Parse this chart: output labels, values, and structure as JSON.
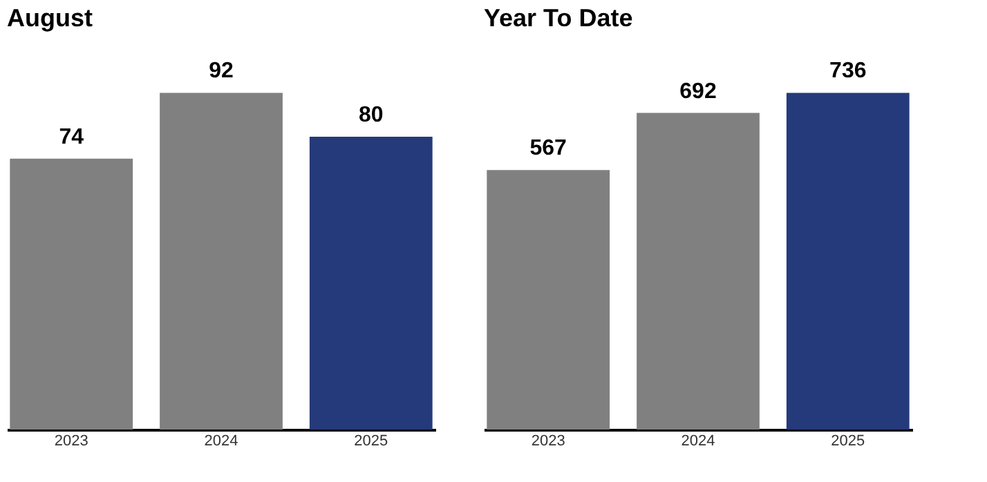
{
  "chart_data": [
    {
      "type": "bar",
      "title": "August",
      "categories": [
        "2023",
        "2024",
        "2025"
      ],
      "values": [
        74,
        92,
        80
      ],
      "colors": [
        "#808080",
        "#808080",
        "#253a7a"
      ],
      "data_labels": true,
      "tick_labels": "x",
      "grid": false
    },
    {
      "type": "bar",
      "title": "Year To Date",
      "categories": [
        "2023",
        "2024",
        "2025"
      ],
      "values": [
        567,
        692,
        736
      ],
      "colors": [
        "#808080",
        "#808080",
        "#253a7a"
      ],
      "data_labels": true,
      "tick_labels": "x",
      "grid": false
    }
  ]
}
